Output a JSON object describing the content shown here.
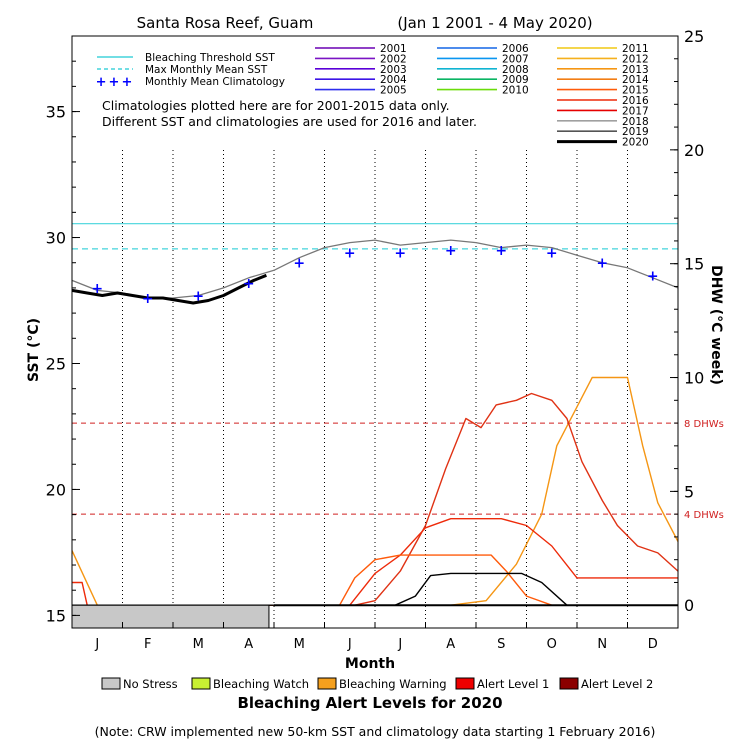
{
  "chart_data": {
    "type": "line",
    "title": "Santa Rosa Reef, Guam",
    "date_range": "(Jan 1 2001 - 4 May 2020)",
    "xlabel": "Month",
    "ylabel_left": "SST (°C)",
    "ylabel_right": "DHW (°C week)",
    "x_categories": [
      "J",
      "F",
      "M",
      "A",
      "M",
      "J",
      "J",
      "A",
      "S",
      "O",
      "N",
      "D"
    ],
    "ylim_left": [
      14.5,
      38
    ],
    "yticks_left": [
      15,
      20,
      25,
      30,
      35
    ],
    "ylim_right": [
      -1,
      25
    ],
    "yticks_right": [
      0,
      5,
      10,
      15,
      20,
      25
    ],
    "grid": "vertical dotted month lines",
    "legend_position": "top",
    "bleaching_threshold_sst": 30.55,
    "max_monthly_mean_sst": 29.55,
    "dhw_thresholds": [
      {
        "value": 4,
        "label": "4 DHWs"
      },
      {
        "value": 8,
        "label": "8 DHWs"
      }
    ],
    "reference_legend": [
      {
        "label": "Bleaching Threshold SST",
        "color": "#44d4dc",
        "style": "solid"
      },
      {
        "label": "Max Monthly Mean SST",
        "color": "#44d4dc",
        "style": "dashed"
      },
      {
        "label": "Monthly Mean Climatology",
        "color": "#0000ff",
        "style": "plus"
      }
    ],
    "year_series": [
      {
        "name": "2001",
        "color": "#6a00b4"
      },
      {
        "name": "2002",
        "color": "#7a14c4"
      },
      {
        "name": "2003",
        "color": "#5a00d8"
      },
      {
        "name": "2004",
        "color": "#3c14e6"
      },
      {
        "name": "2005",
        "color": "#2d2dee"
      },
      {
        "name": "2006",
        "color": "#1466e6"
      },
      {
        "name": "2007",
        "color": "#0a96f0"
      },
      {
        "name": "2008",
        "color": "#10b4d2"
      },
      {
        "name": "2009",
        "color": "#0ab464"
      },
      {
        "name": "2010",
        "color": "#6cdc0a"
      },
      {
        "name": "2011",
        "color": "#f0c814"
      },
      {
        "name": "2012",
        "color": "#f5b01e"
      },
      {
        "name": "2013",
        "color": "#f59614"
      },
      {
        "name": "2014",
        "color": "#f27d14"
      },
      {
        "name": "2015",
        "color": "#ff5a0a"
      },
      {
        "name": "2016",
        "color": "#ee2a0a"
      },
      {
        "name": "2017",
        "color": "#e60000"
      },
      {
        "name": "2018",
        "color": "#a0a0a0"
      },
      {
        "name": "2019",
        "color": "#555555"
      },
      {
        "name": "2020",
        "color": "#000000"
      }
    ],
    "notes": [
      "Climatologies plotted here are for 2001-2015 data only.",
      "Different SST and climatologies are used for 2016 and later."
    ],
    "monthly_mean_climatology": {
      "x_month": [
        0.5,
        1.5,
        2.5,
        3.5,
        4.5,
        5.5,
        6.5,
        7.5,
        8.5,
        9.5,
        10.5,
        11.5
      ],
      "sst": [
        28.0,
        27.6,
        27.7,
        28.2,
        29.0,
        29.4,
        29.4,
        29.5,
        29.5,
        29.4,
        29.0,
        28.5
      ]
    },
    "sst_2020_black": {
      "x_month": [
        0,
        0.3,
        0.6,
        0.9,
        1.2,
        1.5,
        1.8,
        2.1,
        2.4,
        2.7,
        3.0,
        3.3,
        3.6,
        3.85
      ],
      "sst": [
        27.9,
        27.8,
        27.7,
        27.8,
        27.7,
        27.6,
        27.6,
        27.5,
        27.4,
        27.5,
        27.7,
        28.0,
        28.3,
        28.5
      ]
    },
    "sst_2019": {
      "x_month": [
        0,
        0.5,
        1,
        1.5,
        2,
        2.5,
        3,
        3.5,
        4,
        4.5,
        5,
        5.5,
        6,
        6.5,
        7,
        7.5,
        8,
        8.5,
        9,
        9.5,
        10,
        10.5,
        11,
        11.5,
        12
      ],
      "sst": [
        28.3,
        27.9,
        27.8,
        27.6,
        27.6,
        27.7,
        28.0,
        28.4,
        28.7,
        29.2,
        29.6,
        29.8,
        29.9,
        29.7,
        29.8,
        29.9,
        29.8,
        29.6,
        29.7,
        29.6,
        29.3,
        29.0,
        28.8,
        28.4,
        28.0
      ]
    },
    "dhw_series": [
      {
        "name": "2014",
        "color": "#f59614",
        "x_month": [
          0,
          0.5,
          1,
          1.5,
          2,
          2.5,
          3,
          3.5,
          4,
          4.5,
          5,
          5.5,
          6,
          6.5,
          7,
          7.5,
          8,
          8.5,
          9,
          9.5,
          10,
          10.5,
          11,
          11.5,
          12
        ],
        "dhw": [
          2.4,
          0,
          0,
          0,
          0,
          0,
          0,
          0,
          0,
          0,
          0,
          0,
          0,
          0,
          0,
          0,
          0,
          0,
          0,
          0,
          0,
          0,
          0,
          0,
          0
        ]
      },
      {
        "name": "2013",
        "color": "#f59614",
        "x_month": [
          0,
          4,
          5,
          6.3,
          6.8,
          7.5,
          8.2,
          8.8,
          9.3,
          9.6,
          10.3,
          11,
          11.3,
          11.6,
          12
        ],
        "dhw": [
          0,
          0,
          0,
          0,
          0,
          0,
          0.2,
          1.8,
          4.0,
          7.0,
          10.0,
          10.0,
          7.0,
          4.5,
          2.8
        ]
      },
      {
        "name": "2017",
        "color": "#e03214",
        "x_month": [
          0,
          4,
          5,
          5.6,
          6,
          6.5,
          7,
          7.4,
          7.8,
          8.1,
          8.4,
          8.8,
          9.1,
          9.5,
          9.8,
          10.1,
          10.5,
          10.8,
          11.2,
          11.6,
          12
        ],
        "dhw": [
          0,
          0,
          0,
          0,
          0.2,
          1.5,
          3.5,
          6.0,
          8.2,
          7.8,
          8.8,
          9.0,
          9.3,
          9.0,
          8.2,
          6.3,
          4.6,
          3.5,
          2.6,
          2.3,
          1.5
        ]
      },
      {
        "name": "2016",
        "color": "#ee2a0a",
        "x_month": [
          0,
          0.2,
          0.3,
          4,
          5,
          5.5,
          6,
          6.5,
          7,
          7.5,
          8,
          8.5,
          9,
          9.5,
          10,
          10.5,
          11,
          11.5,
          12
        ],
        "dhw": [
          1.0,
          1.0,
          0,
          0,
          0,
          0,
          1.4,
          2.2,
          3.4,
          3.8,
          3.8,
          3.8,
          3.5,
          2.6,
          1.2,
          1.2,
          1.2,
          1.2,
          1.2
        ]
      },
      {
        "name": "2015",
        "color": "#ff5a0a",
        "x_month": [
          0,
          4,
          5,
          5.3,
          5.6,
          6,
          6.5,
          7,
          7.5,
          8,
          8.3,
          8.6,
          9,
          9.5,
          10,
          10.5,
          11,
          11.5,
          12
        ],
        "dhw": [
          0,
          0,
          0,
          0,
          1.2,
          2.0,
          2.2,
          2.2,
          2.2,
          2.2,
          2.2,
          1.5,
          0.4,
          0,
          0,
          0,
          0,
          0,
          0
        ]
      },
      {
        "name": "2019",
        "color": "#000000",
        "x_month": [
          0,
          4,
          5,
          6,
          6.4,
          6.8,
          7.1,
          7.5,
          8,
          8.5,
          8.9,
          9.3,
          9.8,
          10.3,
          11,
          12
        ],
        "dhw": [
          0,
          0,
          0,
          0,
          0,
          0.4,
          1.3,
          1.4,
          1.4,
          1.4,
          1.4,
          1.0,
          0,
          0,
          0,
          0
        ]
      }
    ],
    "alert_bar_2020": {
      "level": "No Stress",
      "x_month_start": 0,
      "x_month_end": 3.9
    },
    "alert_levels_legend": [
      {
        "label": "No Stress",
        "color": "#c8c8c8"
      },
      {
        "label": "Bleaching Watch",
        "color": "#c8f032"
      },
      {
        "label": "Bleaching Warning",
        "color": "#f5a01e"
      },
      {
        "label": "Alert Level 1",
        "color": "#ee0000"
      },
      {
        "label": "Alert Level 2",
        "color": "#8b0000"
      }
    ],
    "alert_levels_title": "Bleaching Alert Levels for 2020",
    "footnote": "(Note: CRW implemented new 50-km SST and climatology data starting 1 February 2016)"
  }
}
